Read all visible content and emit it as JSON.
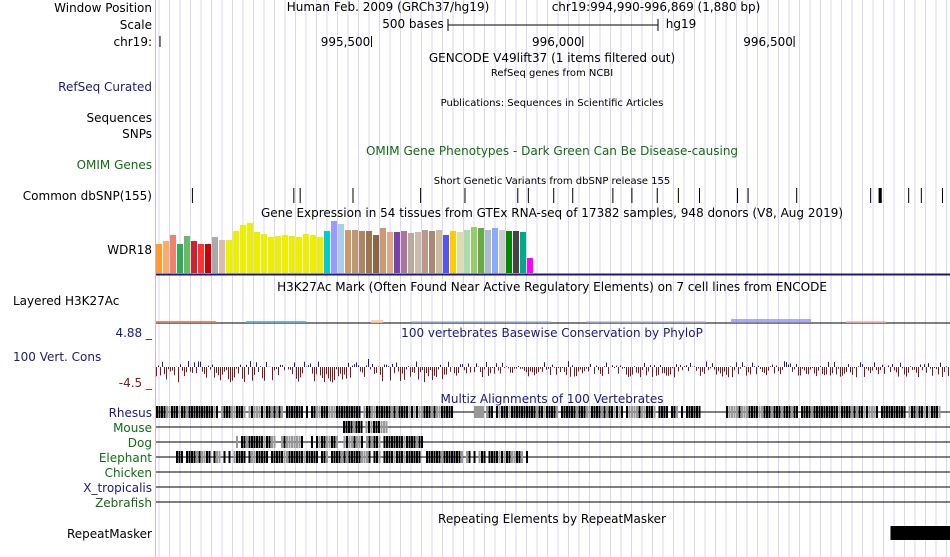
{
  "labels": {
    "window_position": "Window Position",
    "scale": "Scale",
    "chrom": "chr19:",
    "refseq": "RefSeq Curated",
    "sequences": "Sequences",
    "snps": "SNPs",
    "omim": "OMIM Genes",
    "dbsnp": "Common dbSNP(155)",
    "wdr18": "WDR18",
    "h3k27ac": "Layered H3K27Ac",
    "cons_max": "4.88 _",
    "cons": "100 Vert. Cons",
    "cons_min": "-4.5 _",
    "species": [
      "Rhesus",
      "Mouse",
      "Dog",
      "Elephant",
      "Chicken",
      "X_tropicalis",
      "Zebrafish"
    ],
    "repeatmasker": "RepeatMasker"
  },
  "header": {
    "assembly": "Human Feb. 2009 (GRCh37/hg19)",
    "position": "chr19:994,990-996,869 (1,880 bp)",
    "scale_text": "500 bases",
    "db": "hg19",
    "ticks": [
      {
        "label": "995,500",
        "pos": 995500
      },
      {
        "label": "996,000",
        "pos": 996000
      },
      {
        "label": "996,500",
        "pos": 996500
      }
    ]
  },
  "view": {
    "start": 994990,
    "end": 996869
  },
  "tracks": {
    "gencode": "GENCODE V49lift37 (1 items filtered out)",
    "refseq": "RefSeq genes from NCBI",
    "publications": "Publications: Sequences in Scientific Articles",
    "omim": "OMIM Gene Phenotypes - Dark Green Can Be Disease-causing",
    "dbsnp": "Short Genetic Variants from dbSNP release 155",
    "gtex": "Gene Expression in 54 tissues from GTEx RNA-seq of 17382 samples, 948 donors (V8, Aug 2019)",
    "h3k27ac": "H3K27Ac Mark (Often Found Near Active Regulatory Elements) on 7 cell lines from ENCODE",
    "phylop": "100 vertebrates Basewise Conservation by PhyloP",
    "multiz": "Multiz Alignments of 100 Vertebrates",
    "repeatmasker": "Repeating Elements by RepeatMasker"
  },
  "gtex_colors": [
    "#ff9933",
    "#ffaa66",
    "#f08070",
    "#33aa55",
    "#66bb66",
    "#cc2233",
    "#ff3333",
    "#cc0000",
    "#aaaaaa",
    "#ddbbaa",
    "#eeee00",
    "#eeee00",
    "#eeee00",
    "#eeee00",
    "#eeee00",
    "#eeee00",
    "#eeee00",
    "#eeee00",
    "#eeee00",
    "#eeee00",
    "#eeee00",
    "#eeee00",
    "#eeee00",
    "#eeee00",
    "#00cccc",
    "#9999ff",
    "#aaccee",
    "#cc9966",
    "#bb9977",
    "#aa8866",
    "#997755",
    "#886644",
    "#cc9977",
    "#ddaa88",
    "#7744aa",
    "#aa7799",
    "#bbaa99",
    "#ccbbaa",
    "#bb9988",
    "#aa8877",
    "#ccbb99",
    "#5555ee",
    "#ffcc00",
    "#ddddaa",
    "#aaddaa",
    "#99cc66",
    "#66aa44",
    "#aabbcc",
    "#88aaff",
    "#cccccc",
    "#008800",
    "#444444",
    "#00aa88",
    "#ff00ff"
  ],
  "gtex_values": [
    0.55,
    0.6,
    0.72,
    0.55,
    0.7,
    0.6,
    0.55,
    0.55,
    0.68,
    0.62,
    0.62,
    0.8,
    0.9,
    0.95,
    0.78,
    0.74,
    0.68,
    0.7,
    0.72,
    0.7,
    0.68,
    0.74,
    0.72,
    0.68,
    0.8,
    0.98,
    0.92,
    0.82,
    0.82,
    0.8,
    0.8,
    0.72,
    0.85,
    0.78,
    0.78,
    0.8,
    0.75,
    0.78,
    0.82,
    0.8,
    0.82,
    0.72,
    0.8,
    0.78,
    0.82,
    0.86,
    0.84,
    0.82,
    0.85,
    0.82,
    0.8,
    0.8,
    0.78,
    0.28
  ],
  "dbsnp_positions": [
    995075,
    995315,
    995330,
    995455,
    995615,
    995720,
    995845,
    995870,
    995930,
    995975,
    996070,
    996115,
    996175,
    996225,
    996275,
    996365,
    996390,
    996505,
    996680,
    996700,
    996705,
    996770,
    996800,
    996850
  ],
  "repeat_regions": [
    [
      996740,
      996869
    ]
  ],
  "colors": {
    "label_blue": "#1a1a7a",
    "label_green": "#136b13",
    "cons_pos": "#1a1a7a",
    "cons_neg": "#7a1a1a",
    "guide": "#d8d8ef"
  }
}
